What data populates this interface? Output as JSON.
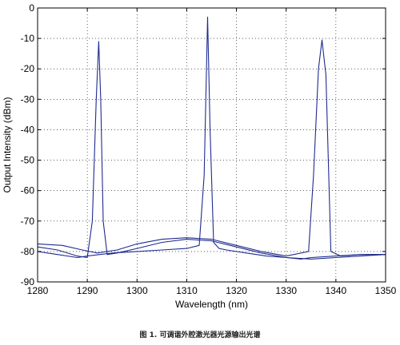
{
  "caption": "图 1. 可调谐外腔激光器光源输出光谱",
  "colors": {
    "line": "#1f2b8f",
    "grid": "#000000",
    "axis": "#000000",
    "background": "#ffffff"
  },
  "chart_data": {
    "type": "line",
    "title": "",
    "xlabel": "Wavelength (nm)",
    "ylabel": "Output Intensity (dBm)",
    "xlim": [
      1280,
      1350
    ],
    "ylim": [
      -90,
      0
    ],
    "xticks": [
      1280,
      1290,
      1300,
      1310,
      1320,
      1330,
      1340,
      1350
    ],
    "yticks": [
      0,
      -10,
      -20,
      -30,
      -40,
      -50,
      -60,
      -70,
      -80,
      -90
    ],
    "grid": "dotted",
    "legend": "none",
    "series": [
      {
        "x": [
          1280,
          1284,
          1288,
          1290,
          1291,
          1291.8,
          1292.3,
          1292.7,
          1293.2,
          1294,
          1296,
          1300,
          1305,
          1310,
          1315,
          1320,
          1325,
          1330,
          1333,
          1335,
          1340,
          1345,
          1350
        ],
        "y": [
          -78.5,
          -79.5,
          -81.5,
          -82,
          -70,
          -30,
          -11,
          -30,
          -70,
          -81,
          -80.5,
          -79,
          -77,
          -76,
          -76.5,
          -78.5,
          -80.5,
          -82,
          -82.5,
          -82,
          -81.5,
          -81,
          -81
        ]
      },
      {
        "x": [
          1280,
          1284,
          1288,
          1290,
          1295,
          1300,
          1305,
          1310,
          1312.5,
          1313.5,
          1314.2,
          1314.7,
          1315.4,
          1316.5,
          1318,
          1322,
          1326,
          1330,
          1335,
          1340,
          1345,
          1350
        ],
        "y": [
          -80,
          -81,
          -82,
          -81.5,
          -80.5,
          -80,
          -79.5,
          -79,
          -78,
          -55,
          -3,
          -40,
          -77,
          -79,
          -79.5,
          -80.5,
          -81.5,
          -82,
          -82.5,
          -82,
          -81.5,
          -81
        ]
      },
      {
        "x": [
          1280,
          1285,
          1289,
          1292,
          1296,
          1300,
          1305,
          1310,
          1315,
          1320,
          1325,
          1330,
          1334.5,
          1335.5,
          1336.5,
          1337.2,
          1338,
          1339,
          1341,
          1345,
          1350
        ],
        "y": [
          -77.5,
          -78,
          -79.5,
          -80.5,
          -79.5,
          -77.5,
          -76,
          -75.5,
          -76,
          -78,
          -80,
          -81.5,
          -80,
          -55,
          -20,
          -10.5,
          -22,
          -80,
          -81.5,
          -81,
          -81
        ]
      }
    ]
  }
}
